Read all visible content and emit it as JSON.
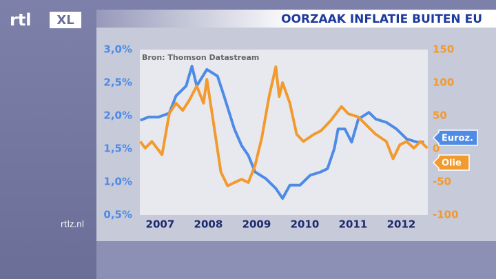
{
  "logo": "rtl",
  "logo_badge": "XL",
  "footer": "rtlz.nl",
  "chart_data": {
    "type": "line",
    "title": "OORZAAK INFLATIE BUITEN EU",
    "annotation": "Bron: Thomson Datastream",
    "xlim": [
      2007.08,
      2013.05
    ],
    "xticks": [
      {
        "value": 2007.5,
        "label": "2007"
      },
      {
        "value": 2008.5,
        "label": "2008"
      },
      {
        "value": 2009.5,
        "label": "2009"
      },
      {
        "value": 2010.5,
        "label": "2010"
      },
      {
        "value": 2011.5,
        "label": "2011"
      },
      {
        "value": 2012.5,
        "label": "2012"
      }
    ],
    "ylim": [
      0.5,
      3.0
    ],
    "yticks": [
      {
        "value": 0.5,
        "label": "0,5%"
      },
      {
        "value": 1.0,
        "label": "1,0%"
      },
      {
        "value": 1.5,
        "label": "1,5%"
      },
      {
        "value": 2.0,
        "label": "2,0%"
      },
      {
        "value": 2.5,
        "label": "2,5%"
      },
      {
        "value": 3.0,
        "label": "3,0%"
      }
    ],
    "y2lim": [
      -100,
      150
    ],
    "y2ticks": [
      -100,
      -50,
      0,
      50,
      100,
      150
    ],
    "series": [
      {
        "name": "Euroz.",
        "color": "#4d8be6",
        "x": [
          2007.09,
          2007.26,
          2007.47,
          2007.69,
          2007.83,
          2008.04,
          2008.16,
          2008.26,
          2008.47,
          2008.69,
          2008.83,
          2009.04,
          2009.19,
          2009.33,
          2009.47,
          2009.69,
          2009.9,
          2010.04,
          2010.19,
          2010.4,
          2010.61,
          2010.83,
          2010.97,
          2011.11,
          2011.19,
          2011.33,
          2011.47,
          2011.61,
          2011.83,
          2011.97,
          2012.19,
          2012.4,
          2012.61,
          2012.83,
          2012.97
        ],
        "values": [
          1.93,
          1.98,
          1.98,
          2.04,
          2.3,
          2.45,
          2.75,
          2.45,
          2.7,
          2.6,
          2.29,
          1.8,
          1.55,
          1.4,
          1.15,
          1.05,
          0.9,
          0.75,
          0.95,
          0.95,
          1.1,
          1.15,
          1.2,
          1.5,
          1.8,
          1.8,
          1.6,
          1.95,
          2.05,
          1.95,
          1.9,
          1.8,
          1.65,
          1.6,
          1.6
        ]
      },
      {
        "name": "Olie",
        "color": "#f29a2e",
        "axis": "y2",
        "x": [
          2007.09,
          2007.19,
          2007.33,
          2007.54,
          2007.69,
          2007.83,
          2007.97,
          2008.11,
          2008.26,
          2008.4,
          2008.47,
          2008.61,
          2008.76,
          2008.9,
          2009.04,
          2009.19,
          2009.33,
          2009.47,
          2009.61,
          2009.76,
          2009.9,
          2009.97,
          2010.04,
          2010.19,
          2010.33,
          2010.47,
          2010.69,
          2010.83,
          2011.04,
          2011.26,
          2011.4,
          2011.61,
          2011.83,
          2011.97,
          2012.19,
          2012.33,
          2012.47,
          2012.61,
          2012.76,
          2012.9,
          2013.04
        ],
        "values": [
          11,
          1,
          11,
          -9,
          53,
          69,
          58,
          74,
          95,
          69,
          105,
          38,
          -35,
          -56,
          -51,
          -46,
          -51,
          -25,
          17,
          79,
          124,
          79,
          100,
          69,
          22,
          11,
          22,
          27,
          43,
          64,
          53,
          48,
          32,
          22,
          11,
          -15,
          6,
          11,
          1,
          11,
          1
        ]
      }
    ]
  }
}
